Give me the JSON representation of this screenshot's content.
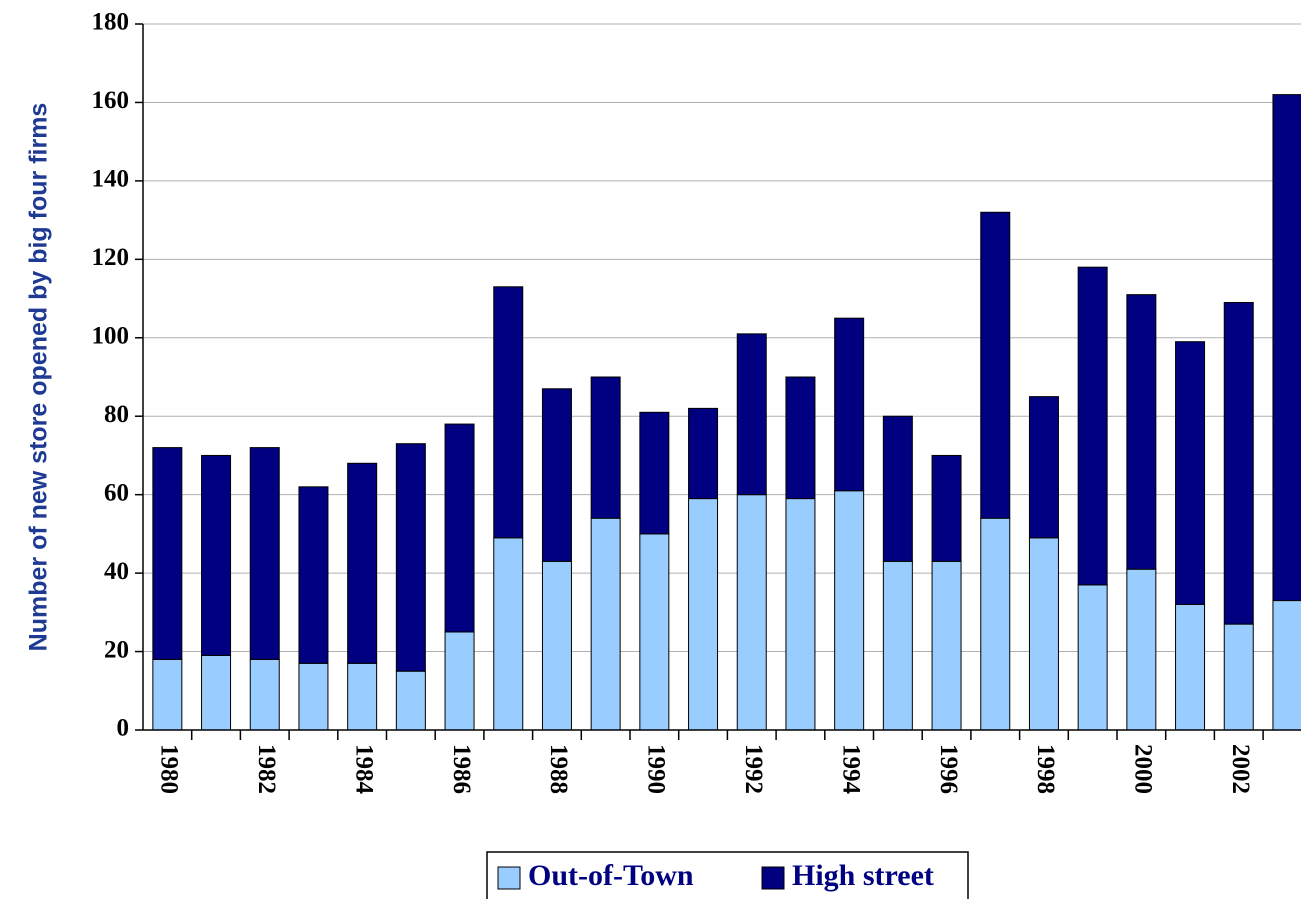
{
  "chart_data": {
    "type": "stacked_bar",
    "y_label": "Number of new store opened by big four firms",
    "categories": [
      "1980",
      null,
      "1982",
      null,
      "1984",
      null,
      "1986",
      null,
      "1988",
      null,
      "1990",
      null,
      "1992",
      null,
      "1994",
      null,
      "1996",
      null,
      "1998",
      null,
      "2000",
      null,
      "2002",
      null
    ],
    "series": [
      {
        "name": "Out-of-Town",
        "color": "#99ccff",
        "values": [
          18,
          19,
          18,
          17,
          17,
          15,
          25,
          49,
          43,
          54,
          50,
          59,
          60,
          59,
          61,
          43,
          43,
          54,
          49,
          37,
          41,
          32,
          27,
          33
        ]
      },
      {
        "name": "High street",
        "color": "#000080",
        "values": [
          54,
          51,
          54,
          45,
          51,
          58,
          53,
          64,
          44,
          36,
          31,
          23,
          41,
          31,
          44,
          37,
          27,
          78,
          36,
          81,
          70,
          67,
          82,
          129
        ]
      }
    ],
    "ylim": [
      0,
      180
    ],
    "yticks": [
      0,
      20,
      40,
      60,
      80,
      100,
      120,
      140,
      160,
      180
    ],
    "grid": true,
    "legend": "bottom"
  }
}
